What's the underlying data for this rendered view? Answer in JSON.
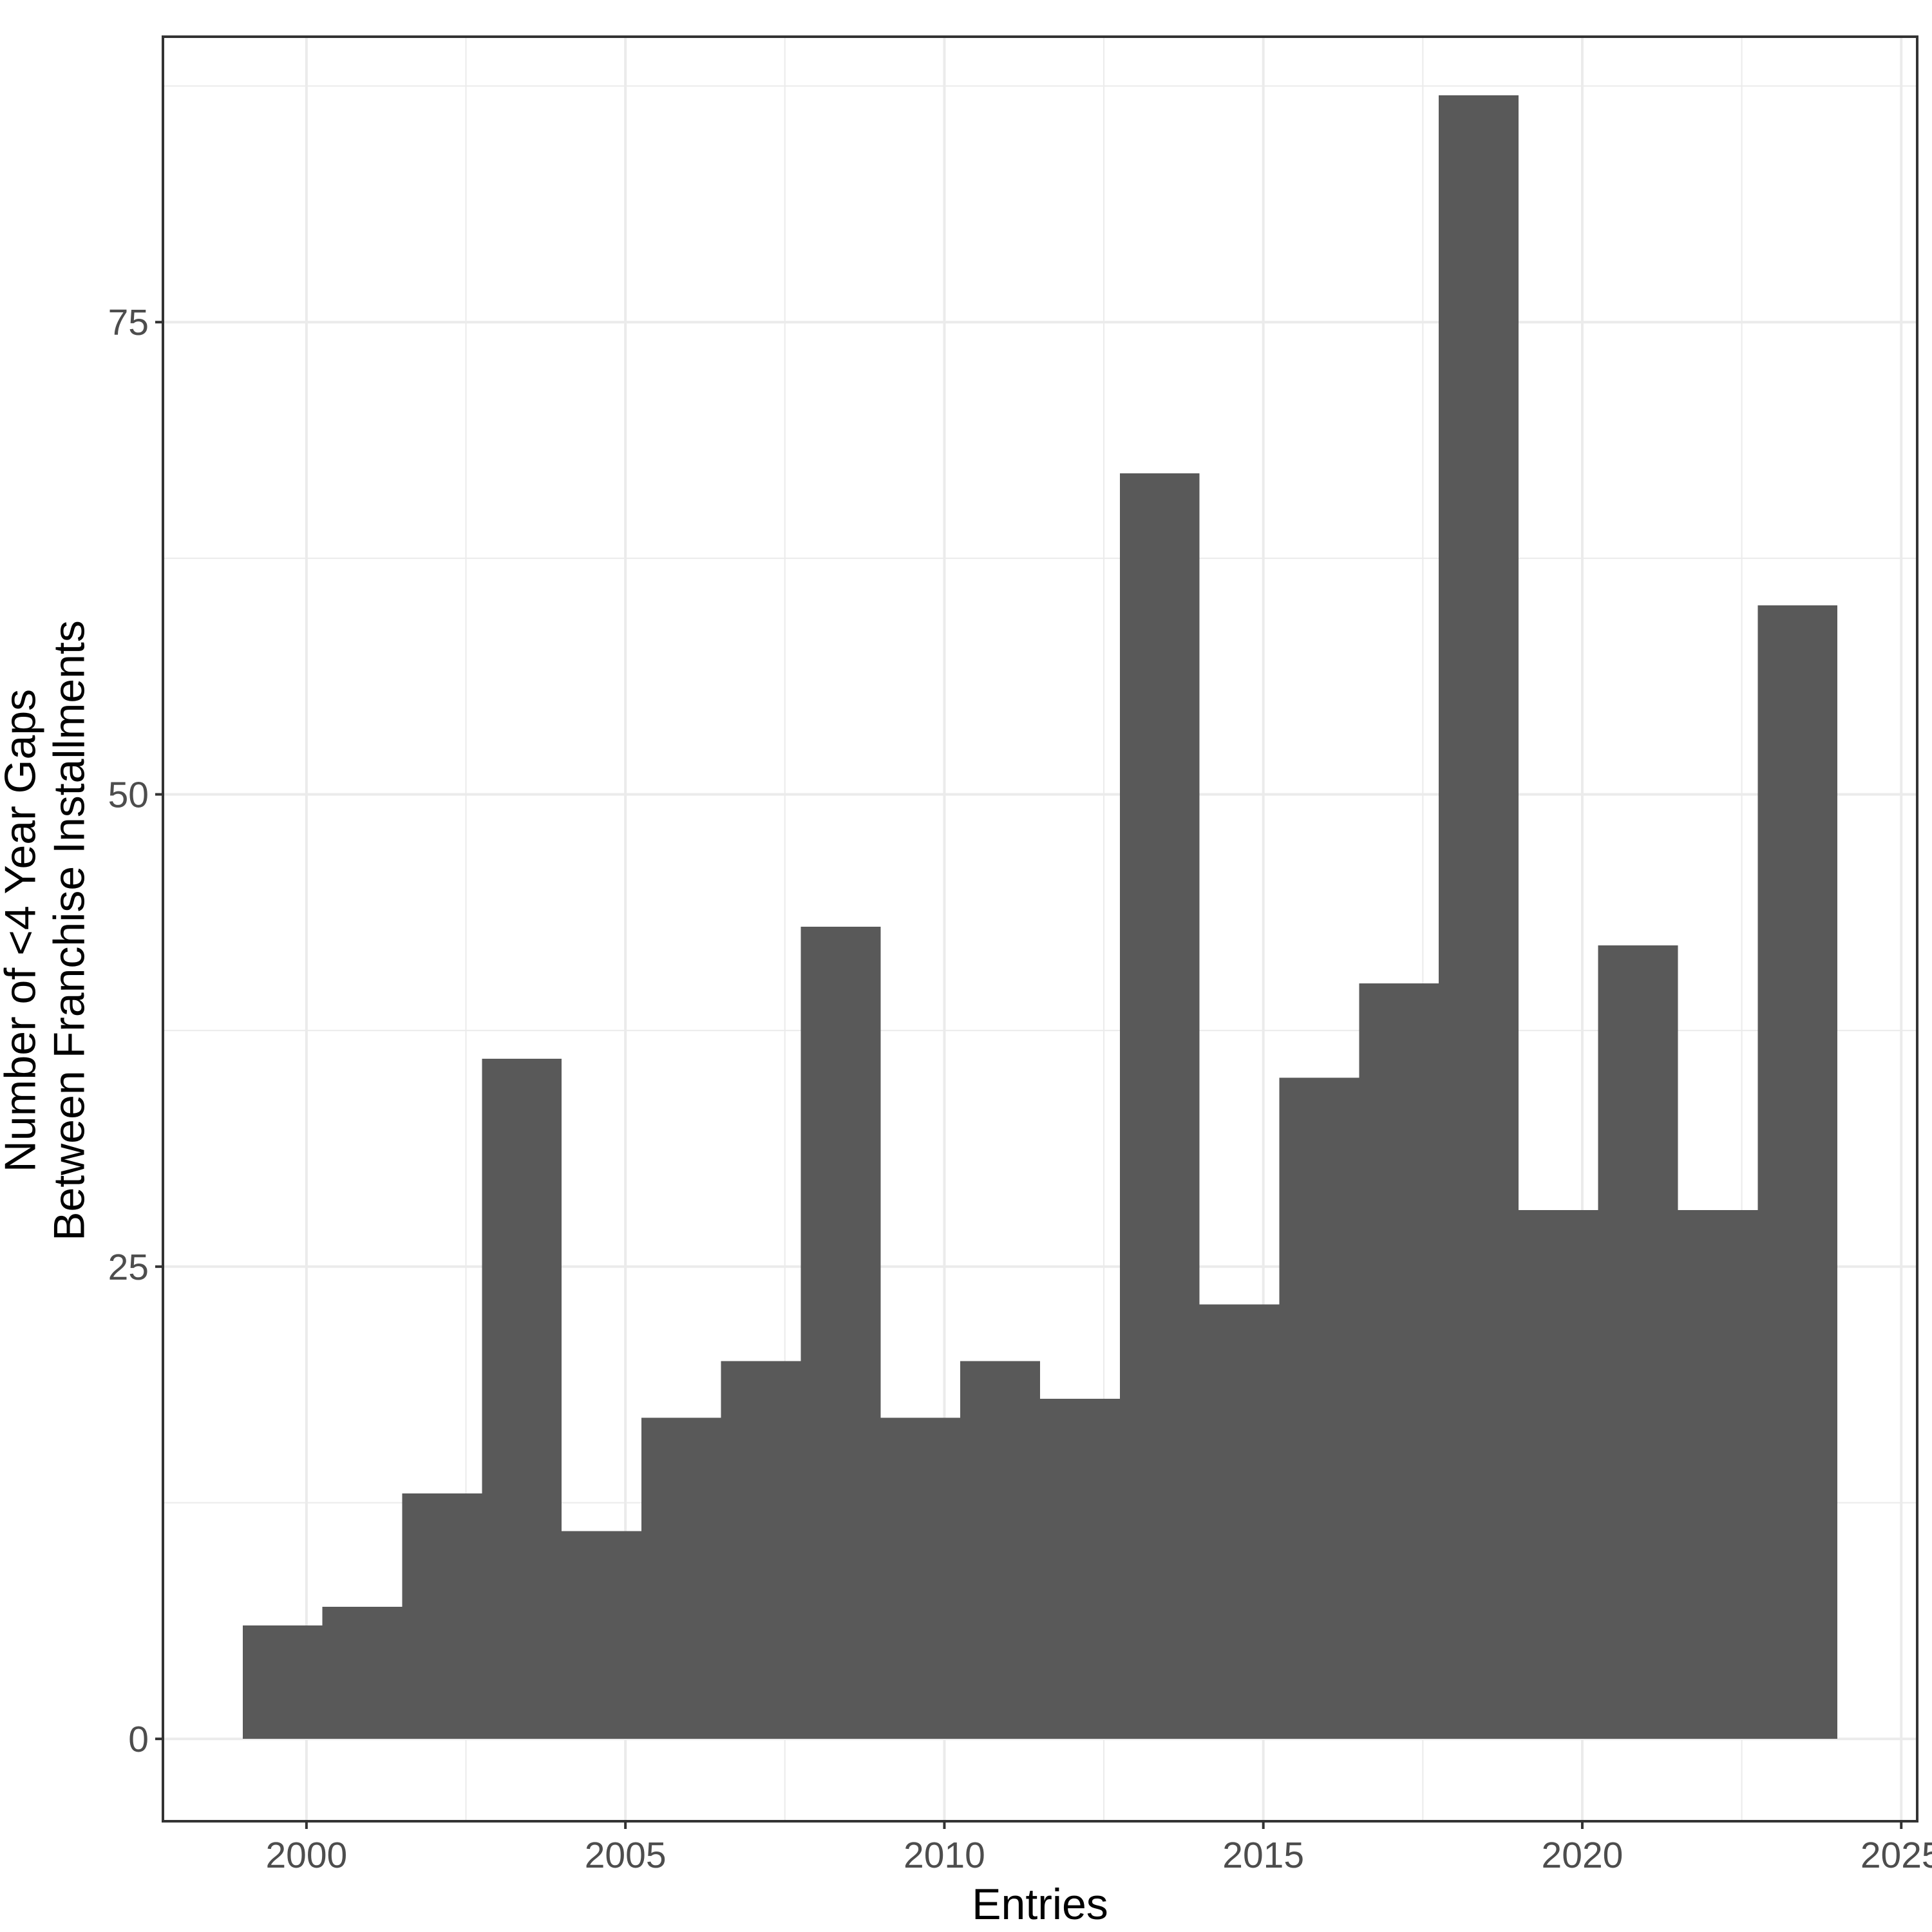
{
  "chart_data": {
    "type": "histogram",
    "title": "",
    "xlabel": "Entries",
    "ylabel_lines": [
      "Number of <4 Year Gaps",
      "Between Franchise Installments"
    ],
    "bin_start": 1999,
    "bin_width": 1.25,
    "categories_bin_edges": [
      1999,
      2000.25,
      2001.5,
      2002.75,
      2004,
      2005.25,
      2006.5,
      2007.75,
      2009,
      2010.25,
      2011.5,
      2012.75,
      2014,
      2015.25,
      2016.5,
      2017.75,
      2019,
      2020.25,
      2021.5,
      2022.75,
      2024
    ],
    "values": [
      6,
      7,
      13,
      36,
      11,
      17,
      20,
      43,
      17,
      20,
      18,
      67,
      23,
      35,
      40,
      87,
      28,
      42,
      28,
      60
    ],
    "x_ticks": [
      2000,
      2005,
      2010,
      2015,
      2020,
      2025
    ],
    "y_ticks": [
      0,
      25,
      50,
      75
    ],
    "xlim": [
      1997.75,
      2025.25
    ],
    "ylim": [
      -4.36,
      90.11
    ],
    "grid": "major-and-minor",
    "legend": "none",
    "colors": {
      "bar": "#595959",
      "grid": "#EBEBEB",
      "panel_border": "#333333",
      "tick_mark": "#333333",
      "tick_label": "#4D4D4D",
      "axis_title": "#000000",
      "background": "#FFFFFF"
    }
  }
}
